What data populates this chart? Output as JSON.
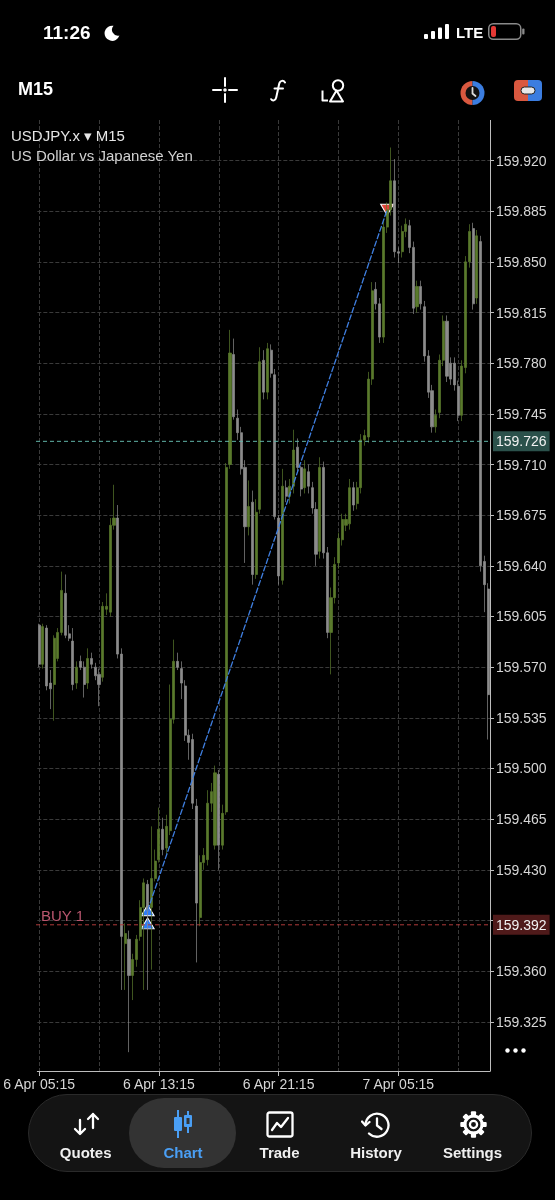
{
  "chart_data": {
    "type": "candlestick",
    "title": "USDJPY.x ▾ M15",
    "subtitle": "US Dollar vs Japanese Yen",
    "categories": [
      "6 Apr 05:15",
      null,
      null,
      null,
      null,
      null,
      null,
      null,
      null,
      null,
      null,
      null,
      null,
      null,
      null,
      null,
      null,
      null,
      null,
      null,
      null,
      null,
      null,
      null,
      null,
      null,
      null,
      null,
      null,
      null,
      null,
      null,
      "6 Apr 13:15",
      null,
      null,
      null,
      null,
      null,
      null,
      null,
      null,
      null,
      null,
      null,
      null,
      null,
      null,
      null,
      null,
      null,
      null,
      null,
      null,
      null,
      null,
      null,
      null,
      null,
      null,
      null,
      null,
      null,
      null,
      null,
      "6 Apr 21:15",
      null,
      null,
      null,
      null,
      null,
      null,
      null,
      null,
      null,
      null,
      null,
      null,
      null,
      null,
      null,
      null,
      null,
      null,
      null,
      null,
      null,
      null,
      null,
      null,
      null,
      null,
      null,
      null,
      null,
      null,
      null,
      "7 Apr 05:15",
      null,
      null,
      null,
      null,
      null,
      null,
      null,
      null,
      null,
      null,
      null,
      null,
      null,
      null,
      null,
      null,
      null,
      null,
      null,
      null,
      null,
      null,
      null,
      null
    ],
    "ohlc": [
      [
        159.599,
        159.6,
        159.57,
        159.572
      ],
      [
        159.572,
        159.6,
        159.569,
        159.598
      ],
      [
        159.597,
        159.599,
        159.554,
        159.557
      ],
      [
        159.559,
        159.568,
        159.541,
        159.555
      ],
      [
        159.558,
        159.592,
        159.533,
        159.59
      ],
      [
        159.576,
        159.597,
        159.574,
        159.594
      ],
      [
        159.594,
        159.636,
        159.592,
        159.623
      ],
      [
        159.621,
        159.634,
        159.59,
        159.592
      ],
      [
        159.593,
        159.599,
        159.588,
        159.59
      ],
      [
        159.588,
        159.597,
        159.554,
        159.558
      ],
      [
        159.559,
        159.574,
        159.555,
        159.57
      ],
      [
        159.574,
        159.578,
        159.568,
        159.57
      ],
      [
        159.57,
        159.574,
        159.549,
        159.558
      ],
      [
        159.559,
        159.583,
        159.555,
        159.576
      ],
      [
        159.576,
        159.58,
        159.569,
        159.572
      ],
      [
        159.57,
        159.573,
        159.561,
        159.564
      ],
      [
        159.565,
        159.569,
        159.543,
        159.558
      ],
      [
        159.563,
        159.615,
        159.56,
        159.612
      ],
      [
        159.61,
        159.621,
        159.606,
        159.612
      ],
      [
        159.608,
        159.673,
        159.605,
        159.668
      ],
      [
        159.668,
        159.696,
        159.665,
        159.673
      ],
      [
        159.673,
        159.682,
        159.576,
        159.579
      ],
      [
        159.579,
        159.583,
        159.347,
        159.384
      ],
      [
        159.379,
        159.393,
        159.347,
        159.386
      ],
      [
        159.382,
        159.388,
        159.304,
        159.357
      ],
      [
        159.357,
        159.372,
        159.34,
        159.368
      ],
      [
        159.368,
        159.385,
        159.363,
        159.382
      ],
      [
        159.384,
        159.409,
        159.381,
        159.404
      ],
      [
        159.404,
        159.424,
        159.347,
        159.421
      ],
      [
        159.42,
        159.423,
        159.347,
        159.402
      ],
      [
        159.404,
        159.46,
        159.361,
        159.424
      ],
      [
        159.424,
        159.444,
        159.422,
        159.436
      ],
      [
        159.437,
        159.473,
        159.435,
        159.458
      ],
      [
        159.458,
        159.466,
        159.44,
        159.444
      ],
      [
        159.445,
        159.468,
        159.441,
        159.46
      ],
      [
        159.457,
        159.558,
        159.454,
        159.534
      ],
      [
        159.534,
        159.589,
        159.531,
        159.574
      ],
      [
        159.574,
        159.58,
        159.568,
        159.57
      ],
      [
        159.569,
        159.574,
        159.548,
        159.559
      ],
      [
        159.557,
        159.561,
        159.519,
        159.523
      ],
      [
        159.523,
        159.527,
        159.506,
        159.518
      ],
      [
        159.52,
        159.524,
        159.472,
        159.476
      ],
      [
        159.474,
        159.479,
        159.366,
        159.407
      ],
      [
        159.397,
        159.44,
        159.391,
        159.435
      ],
      [
        159.435,
        159.445,
        159.43,
        159.44
      ],
      [
        159.437,
        159.485,
        159.433,
        159.476
      ],
      [
        159.476,
        159.49,
        159.47,
        159.484
      ],
      [
        159.447,
        159.502,
        159.444,
        159.497
      ],
      [
        159.496,
        159.499,
        159.43,
        159.447
      ],
      [
        159.447,
        159.475,
        159.444,
        159.469
      ],
      [
        159.47,
        159.711,
        159.468,
        159.708
      ],
      [
        159.71,
        159.803,
        159.707,
        159.787
      ],
      [
        159.786,
        159.797,
        159.741,
        159.743
      ],
      [
        159.742,
        159.748,
        159.727,
        159.732
      ],
      [
        159.732,
        159.736,
        159.703,
        159.707
      ],
      [
        159.708,
        159.713,
        159.642,
        159.667
      ],
      [
        159.667,
        159.699,
        159.661,
        159.681
      ],
      [
        159.684,
        159.692,
        159.627,
        159.634
      ],
      [
        159.634,
        159.686,
        159.631,
        159.677
      ],
      [
        159.679,
        159.791,
        159.676,
        159.781
      ],
      [
        159.782,
        159.789,
        159.755,
        159.76
      ],
      [
        159.76,
        159.794,
        159.755,
        159.79
      ],
      [
        159.789,
        159.793,
        159.77,
        159.773
      ],
      [
        159.772,
        159.776,
        159.672,
        159.674
      ],
      [
        159.673,
        159.675,
        159.627,
        159.633
      ],
      [
        159.63,
        159.707,
        159.627,
        159.695
      ],
      [
        159.694,
        159.699,
        159.684,
        159.688
      ],
      [
        159.688,
        159.7,
        159.683,
        159.695
      ],
      [
        159.695,
        159.734,
        159.69,
        159.72
      ],
      [
        159.722,
        159.728,
        159.705,
        159.708
      ],
      [
        159.708,
        159.709,
        159.688,
        159.693
      ],
      [
        159.694,
        159.713,
        159.69,
        159.707
      ],
      [
        159.705,
        159.71,
        159.69,
        159.695
      ],
      [
        159.694,
        159.698,
        159.676,
        159.68
      ],
      [
        159.679,
        159.684,
        159.64,
        159.648
      ],
      [
        159.65,
        159.715,
        159.645,
        159.708
      ],
      [
        159.708,
        159.712,
        159.645,
        159.649
      ],
      [
        159.649,
        159.653,
        159.59,
        159.594
      ],
      [
        159.594,
        159.625,
        159.565,
        159.618
      ],
      [
        159.618,
        159.646,
        159.614,
        159.641
      ],
      [
        159.642,
        159.663,
        159.638,
        159.659
      ],
      [
        159.658,
        159.676,
        159.654,
        159.672
      ],
      [
        159.668,
        159.676,
        159.664,
        159.672
      ],
      [
        159.669,
        159.7,
        159.665,
        159.694
      ],
      [
        159.694,
        159.698,
        159.678,
        159.682
      ],
      [
        159.683,
        159.698,
        159.679,
        159.694
      ],
      [
        159.694,
        159.731,
        159.69,
        159.727
      ],
      [
        159.727,
        159.734,
        159.723,
        159.73
      ],
      [
        159.729,
        159.774,
        159.725,
        159.769
      ],
      [
        159.769,
        159.836,
        159.765,
        159.83
      ],
      [
        159.831,
        159.836,
        159.817,
        159.821
      ],
      [
        159.821,
        159.825,
        159.794,
        159.798
      ],
      [
        159.798,
        159.879,
        159.794,
        159.874
      ],
      [
        159.874,
        159.891,
        159.87,
        159.886
      ],
      [
        159.886,
        159.929,
        159.882,
        159.906
      ],
      [
        159.906,
        159.921,
        159.853,
        159.857
      ],
      [
        159.857,
        159.86,
        159.849,
        159.856
      ],
      [
        159.857,
        159.875,
        159.853,
        159.871
      ],
      [
        159.871,
        159.88,
        159.867,
        159.876
      ],
      [
        159.875,
        159.879,
        159.856,
        159.86
      ],
      [
        159.86,
        159.864,
        159.814,
        159.818
      ],
      [
        159.819,
        159.837,
        159.815,
        159.833
      ],
      [
        159.833,
        159.837,
        159.817,
        159.821
      ],
      [
        159.819,
        159.823,
        159.781,
        159.785
      ],
      [
        159.785,
        159.789,
        159.756,
        159.76
      ],
      [
        159.761,
        159.765,
        159.732,
        159.736
      ],
      [
        159.736,
        159.748,
        159.732,
        159.744
      ],
      [
        159.746,
        159.786,
        159.742,
        159.782
      ],
      [
        159.782,
        159.813,
        159.778,
        159.809
      ],
      [
        159.809,
        159.813,
        159.767,
        159.771
      ],
      [
        159.78,
        159.784,
        159.765,
        159.769
      ],
      [
        159.78,
        159.784,
        159.761,
        159.765
      ],
      [
        159.764,
        159.768,
        159.74,
        159.744
      ],
      [
        159.744,
        159.782,
        159.74,
        159.778
      ],
      [
        159.777,
        159.854,
        159.773,
        159.85
      ],
      [
        159.85,
        159.876,
        159.846,
        159.871
      ],
      [
        159.873,
        159.877,
        159.817,
        159.821
      ],
      [
        159.825,
        159.872,
        159.821,
        159.868
      ],
      [
        159.864,
        159.868,
        159.636,
        159.64
      ],
      [
        159.643,
        159.647,
        159.608,
        159.627
      ],
      [
        159.624,
        159.628,
        159.52,
        159.551
      ]
    ],
    "colors": [
      "#8c8c8c",
      "#5a7a2c",
      "#8c8c8c",
      "#8c8c8c",
      "#5a7a2c",
      "#5a7a2c",
      "#5a7a2c",
      "#8c8c8c",
      "#8c8c8c",
      "#8c8c8c",
      "#5a7a2c",
      "#8c8c8c",
      "#8c8c8c",
      "#5a7a2c",
      "#8c8c8c",
      "#8c8c8c",
      "#8c8c8c",
      "#5a7a2c",
      "#5a7a2c",
      "#5a7a2c",
      "#5a7a2c",
      "#8c8c8c",
      "#8c8c8c",
      "#5a7a2c",
      "#8c8c8c",
      "#5a7a2c",
      "#5a7a2c",
      "#5a7a2c",
      "#5a7a2c",
      "#8c8c8c",
      "#5a7a2c",
      "#5a7a2c",
      "#5a7a2c",
      "#8c8c8c",
      "#5a7a2c",
      "#5a7a2c",
      "#5a7a2c",
      "#8c8c8c",
      "#8c8c8c",
      "#8c8c8c",
      "#8c8c8c",
      "#8c8c8c",
      "#8c8c8c",
      "#5a7a2c",
      "#5a7a2c",
      "#5a7a2c",
      "#5a7a2c",
      "#5a7a2c",
      "#8c8c8c",
      "#5a7a2c",
      "#5a7a2c",
      "#5a7a2c",
      "#8c8c8c",
      "#8c8c8c",
      "#8c8c8c",
      "#8c8c8c",
      "#5a7a2c",
      "#8c8c8c",
      "#5a7a2c",
      "#5a7a2c",
      "#8c8c8c",
      "#5a7a2c",
      "#8c8c8c",
      "#8c8c8c",
      "#8c8c8c",
      "#5a7a2c",
      "#8c8c8c",
      "#5a7a2c",
      "#5a7a2c",
      "#8c8c8c",
      "#8c8c8c",
      "#5a7a2c",
      "#8c8c8c",
      "#8c8c8c",
      "#8c8c8c",
      "#5a7a2c",
      "#8c8c8c",
      "#8c8c8c",
      "#5a7a2c",
      "#5a7a2c",
      "#5a7a2c",
      "#5a7a2c",
      "#5a7a2c",
      "#5a7a2c",
      "#8c8c8c",
      "#5a7a2c",
      "#5a7a2c",
      "#5a7a2c",
      "#5a7a2c",
      "#5a7a2c",
      "#8c8c8c",
      "#8c8c8c",
      "#5a7a2c",
      "#5a7a2c",
      "#5a7a2c",
      "#8c8c8c",
      "#8c8c8c",
      "#5a7a2c",
      "#5a7a2c",
      "#8c8c8c",
      "#8c8c8c",
      "#5a7a2c",
      "#8c8c8c",
      "#8c8c8c",
      "#8c8c8c",
      "#8c8c8c",
      "#5a7a2c",
      "#5a7a2c",
      "#5a7a2c",
      "#8c8c8c",
      "#8c8c8c",
      "#8c8c8c",
      "#8c8c8c",
      "#5a7a2c",
      "#5a7a2c",
      "#5a7a2c",
      "#8c8c8c",
      "#5a7a2c",
      "#8c8c8c",
      "#8c8c8c",
      "#8c8c8c"
    ],
    "series": [
      {
        "type": "line",
        "color": "#3f7fe0",
        "line_style": "dashed",
        "values": [
          null,
          null,
          null,
          null,
          null,
          null,
          null,
          null,
          null,
          null,
          null,
          null,
          null,
          null,
          null,
          null,
          null,
          null,
          null,
          null,
          null,
          null,
          null,
          null,
          null,
          null,
          null,
          null,
          null,
          159.402,
          null,
          null,
          null,
          null,
          null,
          null,
          null,
          null,
          null,
          null,
          null,
          null,
          null,
          null,
          null,
          null,
          null,
          null,
          null,
          null,
          null,
          null,
          null,
          null,
          null,
          null,
          null,
          null,
          null,
          null,
          null,
          null,
          null,
          null,
          null,
          null,
          null,
          null,
          null,
          null,
          null,
          null,
          null,
          null,
          null,
          null,
          null,
          null,
          null,
          null,
          null,
          null,
          null,
          null,
          null,
          null,
          null,
          null,
          null,
          null,
          null,
          null,
          null,
          159.886,
          null,
          null,
          null,
          null,
          null,
          null,
          null,
          null,
          null,
          null,
          null,
          null,
          null,
          null,
          null,
          null,
          null,
          null,
          null,
          null,
          null,
          null,
          null,
          null,
          null,
          null,
          null
        ]
      },
      {
        "type": "scatter",
        "color": "#2f7cf6",
        "marker": "triangle",
        "values": [
          null,
          null,
          null,
          null,
          null,
          null,
          null,
          null,
          null,
          null,
          null,
          null,
          null,
          null,
          null,
          null,
          null,
          null,
          null,
          null,
          null,
          null,
          null,
          null,
          null,
          null,
          null,
          null,
          null,
          159.402,
          null,
          null,
          null,
          null,
          null,
          null,
          null,
          null,
          null,
          null,
          null,
          null,
          null,
          null,
          null,
          null,
          null,
          null,
          null,
          null,
          null,
          null,
          null,
          null,
          null,
          null,
          null,
          null,
          null,
          null,
          null,
          null,
          null,
          null,
          null,
          null,
          null,
          null,
          null,
          null,
          null,
          null,
          null,
          null,
          null,
          null,
          null,
          null,
          null,
          null,
          null,
          null,
          null,
          null,
          null,
          null,
          null,
          null,
          null,
          null,
          null,
          null,
          null,
          null,
          null,
          null,
          null,
          null,
          null,
          null,
          null,
          null,
          null,
          null,
          null,
          null,
          null,
          null,
          null,
          null,
          null,
          null,
          null,
          null,
          null,
          null,
          null,
          null,
          null,
          null,
          null
        ]
      },
      {
        "type": "scatter",
        "color": "#2f7cf6",
        "marker": "triangle",
        "values": [
          null,
          null,
          null,
          null,
          null,
          null,
          null,
          null,
          null,
          null,
          null,
          null,
          null,
          null,
          null,
          null,
          null,
          null,
          null,
          null,
          null,
          null,
          null,
          null,
          null,
          null,
          null,
          null,
          null,
          159.393,
          null,
          null,
          null,
          null,
          null,
          null,
          null,
          null,
          null,
          null,
          null,
          null,
          null,
          null,
          null,
          null,
          null,
          null,
          null,
          null,
          null,
          null,
          null,
          null,
          null,
          null,
          null,
          null,
          null,
          null,
          null,
          null,
          null,
          null,
          null,
          null,
          null,
          null,
          null,
          null,
          null,
          null,
          null,
          null,
          null,
          null,
          null,
          null,
          null,
          null,
          null,
          null,
          null,
          null,
          null,
          null,
          null,
          null,
          null,
          null,
          null,
          null,
          null,
          null,
          null,
          null,
          null,
          null,
          null,
          null,
          null,
          null,
          null,
          null,
          null,
          null,
          null,
          null,
          null,
          null,
          null,
          null,
          null,
          null,
          null,
          null,
          null,
          null,
          null,
          null,
          null
        ]
      },
      {
        "type": "scatter",
        "color": "#e0453a",
        "marker": "triangle",
        "values": [
          null,
          null,
          null,
          null,
          null,
          null,
          null,
          null,
          null,
          null,
          null,
          null,
          null,
          null,
          null,
          null,
          null,
          null,
          null,
          null,
          null,
          null,
          null,
          null,
          null,
          null,
          null,
          null,
          null,
          null,
          null,
          null,
          null,
          null,
          null,
          null,
          null,
          null,
          null,
          null,
          null,
          null,
          null,
          null,
          null,
          null,
          null,
          null,
          null,
          null,
          null,
          null,
          null,
          null,
          null,
          null,
          null,
          null,
          null,
          null,
          null,
          null,
          null,
          null,
          null,
          null,
          null,
          null,
          null,
          null,
          null,
          null,
          null,
          null,
          null,
          null,
          null,
          null,
          null,
          null,
          null,
          null,
          null,
          null,
          null,
          null,
          null,
          null,
          null,
          null,
          null,
          null,
          null,
          159.886,
          null,
          null,
          null,
          null,
          null,
          null,
          null,
          null,
          null,
          null,
          null,
          null,
          null,
          null,
          null,
          null,
          null,
          null,
          null,
          null,
          null,
          null,
          null,
          null,
          null,
          null,
          null
        ]
      }
    ],
    "ylim": [
      159.291,
      159.948
    ],
    "yticks": [
      159.325,
      {
        "value": 159.36,
        "label": "159.360"
      },
      {
        "value": 159.395,
        "label": null
      },
      {
        "value": 159.43,
        "label": "159.430"
      },
      159.465,
      {
        "value": 159.5,
        "label": "159.500"
      },
      159.535,
      {
        "value": 159.57,
        "label": "159.570"
      },
      159.605,
      {
        "value": 159.64,
        "label": "159.640"
      },
      159.675,
      {
        "value": 159.71,
        "label": "159.710"
      },
      159.745,
      {
        "value": 159.78,
        "label": "159.780"
      },
      159.815,
      {
        "value": 159.85,
        "label": "159.850"
      },
      159.885,
      {
        "value": 159.92,
        "label": "159.920"
      }
    ],
    "grid": true,
    "ref_lines": [
      {
        "axis": "y",
        "value": 159.726,
        "label": "159.726",
        "color": "#5fb3a6",
        "line_style": "dashed"
      },
      {
        "axis": "y",
        "value": 159.392,
        "label": "159.392",
        "color": "#b03a3a",
        "line_style": "dashed"
      }
    ],
    "annotations": [
      "11:26",
      "LTE",
      "M15",
      "Quotes",
      "Chart",
      "Trade",
      "History",
      "Settings",
      {
        "text": "BUY 1",
        "y": 159.392
      }
    ]
  }
}
